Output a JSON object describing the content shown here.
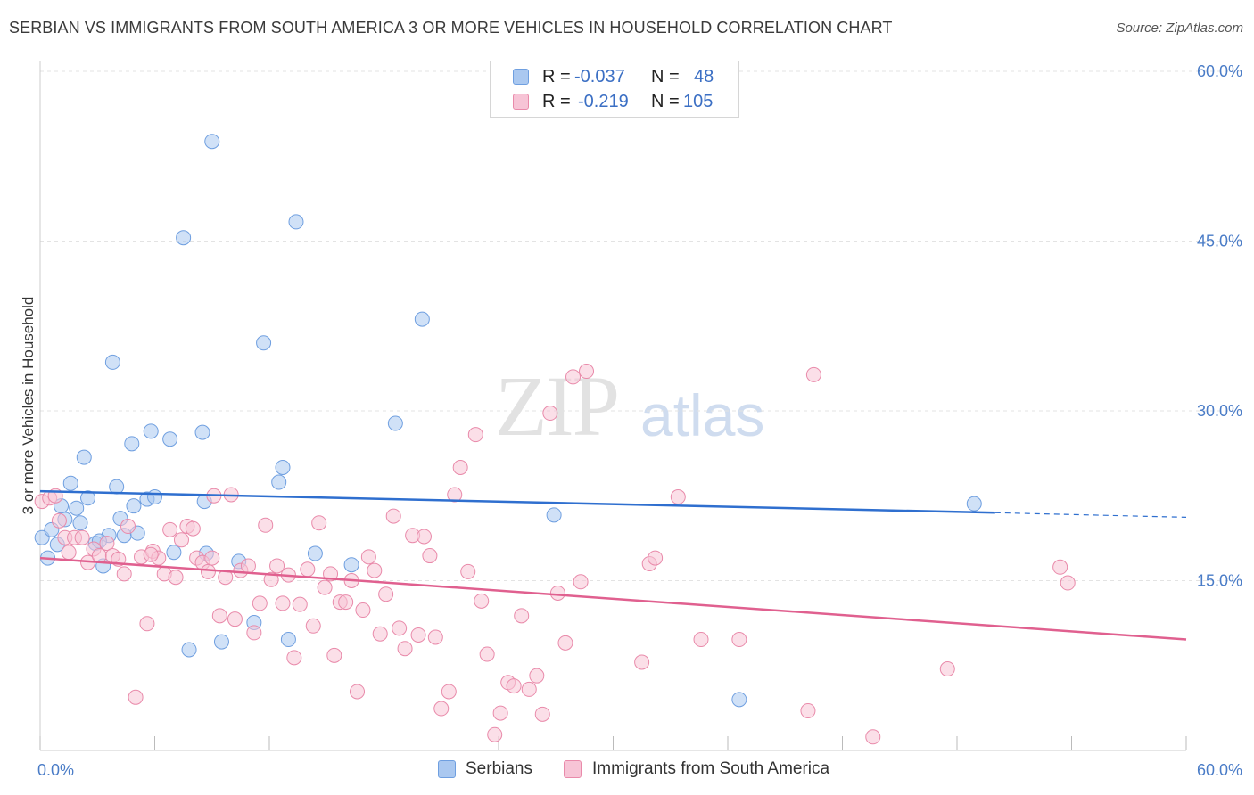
{
  "title": "SERBIAN VS IMMIGRANTS FROM SOUTH AMERICA 3 OR MORE VEHICLES IN HOUSEHOLD CORRELATION CHART",
  "source": "Source: ZipAtlas.com",
  "watermark": {
    "zip": "ZIP",
    "atlas": "atlas"
  },
  "legend": {
    "rows": [
      {
        "r_label": "R =",
        "r_value": "-0.037",
        "n_label": "N =",
        "n_value": "48",
        "color": "#aac8f0",
        "border": "#6f9fe0"
      },
      {
        "r_label": "R =",
        "r_value": "-0.219",
        "n_label": "N =",
        "n_value": "105",
        "color": "#f7c4d6",
        "border": "#e98aaa"
      }
    ]
  },
  "bottom_legend": [
    "Serbians",
    "Immigrants from South America"
  ],
  "chart_data": {
    "type": "scatter",
    "title": "SERBIAN VS IMMIGRANTS FROM SOUTH AMERICA 3 OR MORE VEHICLES IN HOUSEHOLD CORRELATION CHART",
    "xlabel": "",
    "ylabel": "3 or more Vehicles in Household",
    "xlim": [
      0,
      60
    ],
    "ylim": [
      0,
      60
    ],
    "x_tick_labels": [
      "0.0%",
      "60.0%"
    ],
    "y_tick_labels": [
      "15.0%",
      "30.0%",
      "45.0%",
      "60.0%"
    ],
    "y_ticks": [
      15,
      30,
      45,
      60
    ],
    "grid": true,
    "legend_position": "top-center",
    "series": [
      {
        "name": "Serbians",
        "color": "#aac8f0",
        "stroke": "#6f9fe0",
        "trend": {
          "x": [
            0,
            50
          ],
          "y": [
            22.9,
            21.0
          ],
          "dashed_to": [
            60,
            20.6
          ],
          "color": "#2f6fcf"
        },
        "points": [
          [
            0.1,
            18.8
          ],
          [
            0.4,
            17.0
          ],
          [
            0.6,
            19.5
          ],
          [
            0.9,
            18.2
          ],
          [
            1.1,
            21.6
          ],
          [
            1.3,
            20.4
          ],
          [
            1.6,
            23.6
          ],
          [
            1.9,
            21.4
          ],
          [
            2.1,
            20.1
          ],
          [
            2.3,
            25.9
          ],
          [
            2.5,
            22.3
          ],
          [
            2.9,
            18.3
          ],
          [
            3.3,
            16.3
          ],
          [
            3.6,
            19.0
          ],
          [
            3.8,
            34.3
          ],
          [
            4.0,
            23.3
          ],
          [
            4.2,
            20.5
          ],
          [
            4.4,
            19.0
          ],
          [
            4.8,
            27.1
          ],
          [
            4.9,
            21.6
          ],
          [
            5.1,
            19.2
          ],
          [
            5.6,
            22.2
          ],
          [
            5.8,
            28.2
          ],
          [
            6.0,
            22.4
          ],
          [
            6.8,
            27.5
          ],
          [
            7.0,
            17.5
          ],
          [
            7.5,
            45.3
          ],
          [
            7.8,
            8.9
          ],
          [
            8.5,
            28.1
          ],
          [
            8.6,
            22.0
          ],
          [
            8.7,
            17.4
          ],
          [
            9.0,
            53.8
          ],
          [
            9.5,
            9.6
          ],
          [
            10.4,
            16.7
          ],
          [
            11.2,
            11.3
          ],
          [
            11.7,
            36.0
          ],
          [
            12.5,
            23.7
          ],
          [
            12.7,
            25.0
          ],
          [
            13.0,
            9.8
          ],
          [
            13.4,
            46.7
          ],
          [
            14.4,
            17.4
          ],
          [
            16.3,
            16.4
          ],
          [
            18.6,
            28.9
          ],
          [
            20.0,
            38.1
          ],
          [
            26.9,
            20.8
          ],
          [
            36.6,
            4.5
          ],
          [
            48.9,
            21.8
          ],
          [
            3.1,
            18.5
          ]
        ]
      },
      {
        "name": "Immigrants from South America",
        "color": "#f7c4d6",
        "stroke": "#e98aaa",
        "trend": {
          "x": [
            0,
            60
          ],
          "y": [
            17.0,
            9.8
          ],
          "color": "#e0608f"
        },
        "points": [
          [
            0.1,
            22.0
          ],
          [
            0.5,
            22.3
          ],
          [
            0.8,
            22.5
          ],
          [
            1.0,
            20.3
          ],
          [
            1.3,
            18.8
          ],
          [
            1.5,
            17.5
          ],
          [
            1.8,
            18.8
          ],
          [
            2.2,
            18.8
          ],
          [
            2.5,
            16.6
          ],
          [
            2.8,
            17.8
          ],
          [
            3.1,
            17.2
          ],
          [
            3.5,
            18.3
          ],
          [
            3.8,
            17.2
          ],
          [
            4.1,
            16.9
          ],
          [
            4.4,
            15.6
          ],
          [
            4.6,
            19.8
          ],
          [
            5.0,
            4.7
          ],
          [
            5.3,
            17.1
          ],
          [
            5.6,
            11.2
          ],
          [
            5.9,
            17.6
          ],
          [
            6.2,
            17.0
          ],
          [
            6.5,
            15.6
          ],
          [
            6.8,
            19.5
          ],
          [
            7.1,
            15.3
          ],
          [
            7.4,
            18.6
          ],
          [
            7.7,
            19.8
          ],
          [
            8.0,
            19.6
          ],
          [
            8.2,
            17.0
          ],
          [
            8.5,
            16.6
          ],
          [
            8.8,
            15.8
          ],
          [
            9.1,
            22.5
          ],
          [
            9.4,
            11.9
          ],
          [
            9.7,
            15.3
          ],
          [
            10.0,
            22.6
          ],
          [
            10.2,
            11.6
          ],
          [
            10.5,
            15.9
          ],
          [
            10.9,
            16.3
          ],
          [
            11.2,
            10.4
          ],
          [
            11.5,
            13.0
          ],
          [
            11.8,
            19.9
          ],
          [
            12.1,
            15.1
          ],
          [
            12.4,
            16.3
          ],
          [
            12.7,
            13.0
          ],
          [
            13.0,
            15.5
          ],
          [
            13.3,
            8.2
          ],
          [
            13.6,
            12.9
          ],
          [
            14.0,
            16.0
          ],
          [
            14.3,
            11.0
          ],
          [
            14.6,
            20.1
          ],
          [
            14.9,
            14.4
          ],
          [
            15.2,
            15.6
          ],
          [
            15.4,
            8.4
          ],
          [
            15.7,
            13.1
          ],
          [
            16.0,
            13.1
          ],
          [
            16.3,
            15.0
          ],
          [
            16.6,
            5.2
          ],
          [
            16.9,
            12.4
          ],
          [
            17.2,
            17.1
          ],
          [
            17.5,
            15.9
          ],
          [
            17.8,
            10.3
          ],
          [
            18.1,
            13.8
          ],
          [
            18.5,
            20.7
          ],
          [
            18.8,
            10.8
          ],
          [
            19.1,
            9.0
          ],
          [
            19.5,
            19.0
          ],
          [
            19.8,
            10.2
          ],
          [
            20.1,
            18.9
          ],
          [
            20.4,
            17.2
          ],
          [
            20.7,
            10.0
          ],
          [
            21.0,
            3.7
          ],
          [
            21.4,
            5.2
          ],
          [
            21.7,
            22.6
          ],
          [
            22.0,
            25.0
          ],
          [
            22.4,
            15.8
          ],
          [
            22.8,
            27.9
          ],
          [
            23.1,
            13.2
          ],
          [
            23.4,
            8.5
          ],
          [
            23.8,
            1.4
          ],
          [
            24.1,
            3.3
          ],
          [
            24.5,
            6.0
          ],
          [
            24.8,
            5.7
          ],
          [
            25.2,
            11.9
          ],
          [
            25.6,
            5.4
          ],
          [
            26.0,
            6.6
          ],
          [
            26.3,
            3.2
          ],
          [
            26.7,
            29.8
          ],
          [
            27.1,
            13.9
          ],
          [
            27.5,
            9.5
          ],
          [
            27.9,
            33.0
          ],
          [
            28.3,
            14.9
          ],
          [
            28.6,
            33.5
          ],
          [
            31.5,
            7.8
          ],
          [
            31.9,
            16.5
          ],
          [
            32.2,
            17.0
          ],
          [
            33.4,
            22.4
          ],
          [
            34.6,
            9.8
          ],
          [
            36.6,
            9.8
          ],
          [
            40.5,
            33.2
          ],
          [
            40.2,
            3.5
          ],
          [
            43.6,
            1.2
          ],
          [
            47.5,
            7.2
          ],
          [
            53.4,
            16.2
          ],
          [
            53.8,
            14.8
          ],
          [
            5.8,
            17.3
          ],
          [
            9.0,
            17.0
          ]
        ]
      }
    ]
  }
}
